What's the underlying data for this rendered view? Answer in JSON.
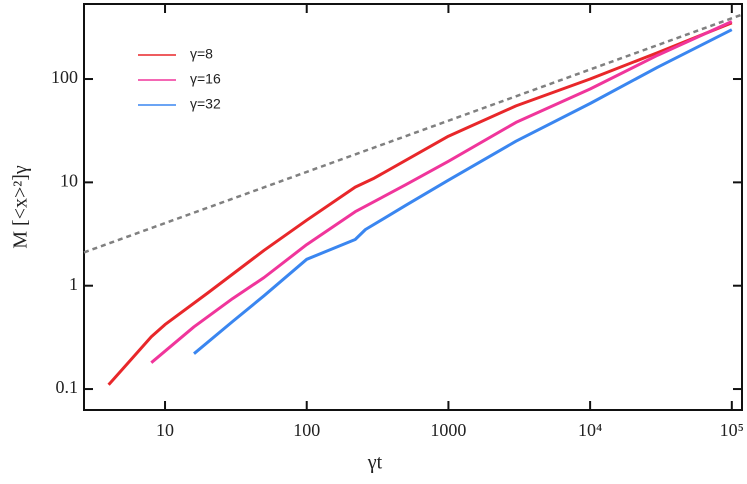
{
  "chart_data": {
    "type": "line",
    "x_label": "γt",
    "y_label": "M [<x>²]γ",
    "log_x": true,
    "log_y": true,
    "xlim": [
      2.68,
      118000
    ],
    "ylim": [
      0.0627,
      532
    ],
    "xticks": [
      10,
      100,
      1000,
      {
        "value": 10000,
        "label": "10⁴"
      },
      {
        "value": 100000,
        "label": "10⁵"
      }
    ],
    "yticks": [
      0.1,
      1,
      10,
      100
    ],
    "legend": "top-left",
    "series": [
      {
        "name": "γ=8",
        "color": "#e8272a",
        "x": [
          4,
          8,
          10,
          20,
          50,
          100,
          220,
          300,
          1000,
          3000,
          10000,
          30000,
          100000
        ],
        "values": [
          0.11,
          0.32,
          0.42,
          0.85,
          2.2,
          4.3,
          9,
          11,
          28,
          55,
          100,
          180,
          350
        ]
      },
      {
        "name": "γ=16",
        "color": "#f0359b",
        "x": [
          8,
          16,
          30,
          50,
          100,
          220,
          500,
          1000,
          3000,
          10000,
          30000,
          100000
        ],
        "values": [
          0.18,
          0.4,
          0.75,
          1.2,
          2.5,
          5.2,
          9.5,
          16,
          38,
          80,
          170,
          360
        ]
      },
      {
        "name": "γ=32",
        "color": "#3a86f0",
        "x": [
          16,
          30,
          50,
          100,
          220,
          260,
          500,
          1000,
          3000,
          10000,
          30000,
          100000
        ],
        "values": [
          0.22,
          0.45,
          0.8,
          1.8,
          2.8,
          3.5,
          6,
          10.5,
          25,
          58,
          130,
          300
        ]
      }
    ],
    "reference_line": {
      "color": "#808080",
      "x": [
        2.68,
        118000
      ],
      "values": [
        2.1,
        420
      ]
    }
  }
}
